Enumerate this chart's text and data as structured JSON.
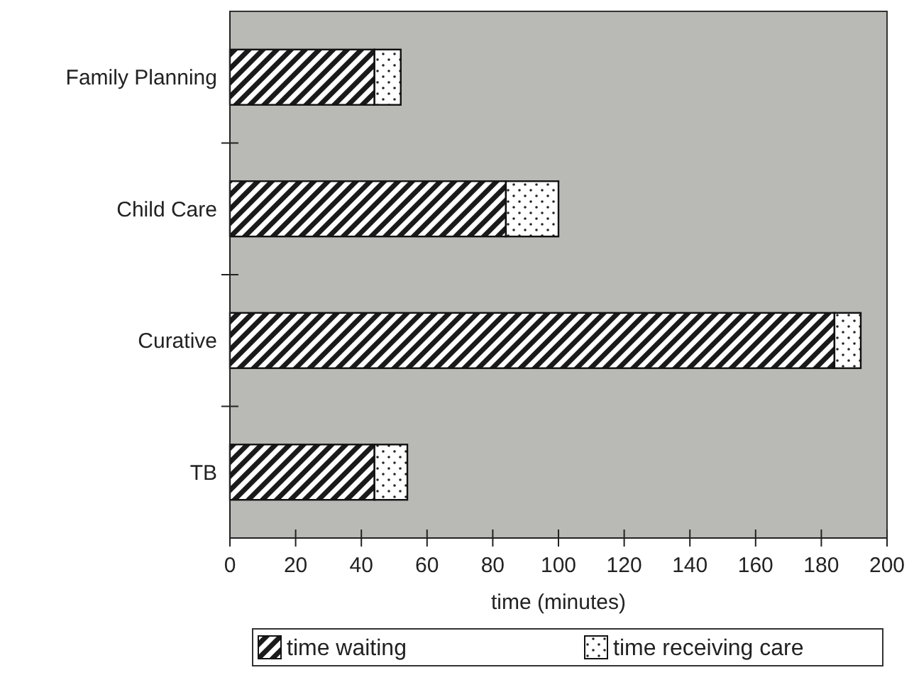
{
  "chart_data": {
    "type": "bar",
    "orientation": "horizontal",
    "stacked": true,
    "xlabel": "time (minutes)",
    "categories": [
      "Family Planning",
      "Child Care",
      "Curative",
      "TB"
    ],
    "series": [
      {
        "name": "time waiting",
        "color": "#1a1a1a",
        "values": [
          44,
          84,
          184,
          44
        ]
      },
      {
        "name": "time receiving care",
        "color": "#ffffff",
        "values": [
          8,
          16,
          8,
          10
        ]
      }
    ],
    "xlim": [
      0,
      200
    ],
    "xticks": [
      0,
      20,
      40,
      60,
      80,
      100,
      120,
      140,
      160,
      180,
      200
    ],
    "grid": false,
    "legend": "bottom"
  }
}
